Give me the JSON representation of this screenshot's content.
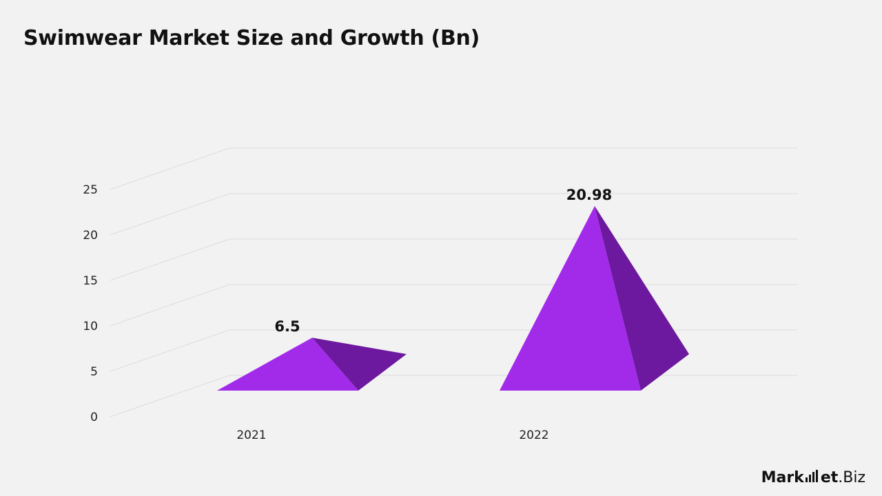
{
  "chart_data": {
    "type": "bar",
    "title": "Swimwear Market Size and Growth (Bn)",
    "xlabel": "",
    "ylabel": "",
    "categories": [
      "2021",
      "2022"
    ],
    "values": [
      6.5,
      20.98
    ],
    "data_labels": [
      "6.5",
      "20.98"
    ],
    "yticks": [
      "0",
      "5",
      "10",
      "15",
      "20",
      "25"
    ],
    "ylim": [
      0,
      25
    ],
    "grid": true,
    "legend": "none",
    "style": "3d-pyramid",
    "colors": {
      "front": "#A22BEA",
      "side": "#6C189F"
    }
  },
  "brand": {
    "prefix": "Mark",
    "suffix": "et",
    "tld": ".Biz",
    "icon": "bar-chart-icon"
  }
}
